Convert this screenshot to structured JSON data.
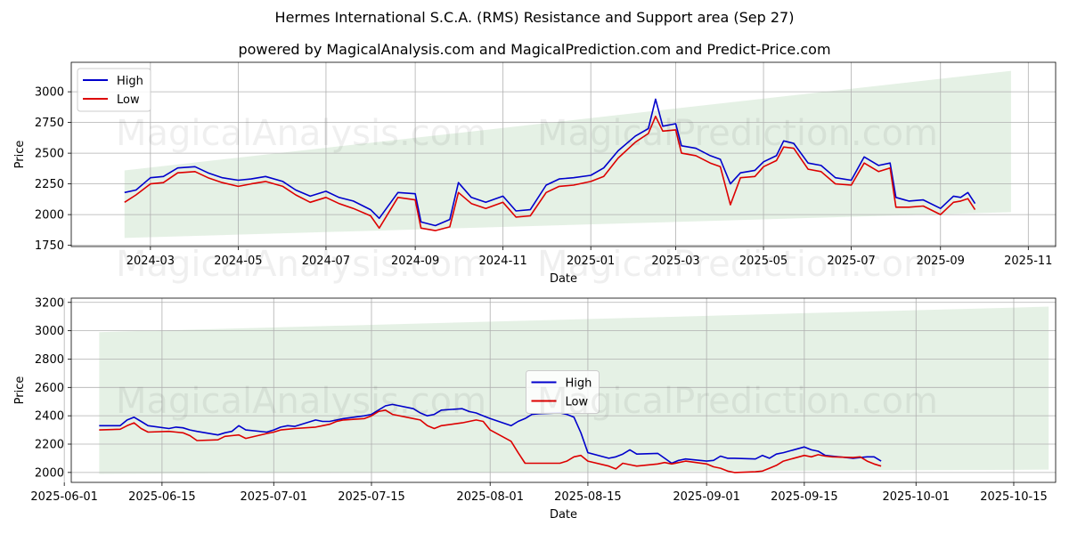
{
  "header": {
    "title": "Hermes International S.C.A. (RMS) Resistance and Support area (Sep 27)",
    "subtitle": "powered by MagicalAnalysis.com and MagicalPrediction.com and Predict-Price.com"
  },
  "watermarks": [
    "MagicalAnalysis.com",
    "MagicalPrediction.com"
  ],
  "colors": {
    "high": "#0000cc",
    "low": "#dd0000",
    "band": "#cfe6cf",
    "grid": "#b0b0b0"
  },
  "chart_data": [
    {
      "type": "line",
      "xlabel": "Date",
      "ylabel": "Price",
      "xlim": [
        "2024-01-06",
        "2025-11-20"
      ],
      "ylim": [
        1740,
        3240
      ],
      "x_ticks": [
        "2024-03",
        "2024-05",
        "2024-07",
        "2024-09",
        "2024-11",
        "2025-01",
        "2025-03",
        "2025-05",
        "2025-07",
        "2025-09",
        "2025-11"
      ],
      "x_tick_dates": [
        "2024-03-01",
        "2024-05-01",
        "2024-07-01",
        "2024-09-01",
        "2024-11-01",
        "2025-01-01",
        "2025-03-01",
        "2025-05-01",
        "2025-07-01",
        "2025-09-01",
        "2025-11-01"
      ],
      "y_ticks": [
        1750,
        2000,
        2250,
        2500,
        2750,
        3000
      ],
      "grid": true,
      "legend": "upper left",
      "band": {
        "start": "2024-02-12",
        "end": "2025-10-20",
        "upper": [
          2360,
          3170
        ],
        "lower": [
          1810,
          2020
        ]
      },
      "series": [
        {
          "name": "High",
          "x": [
            "2024-02-12",
            "2024-02-20",
            "2024-03-01",
            "2024-03-10",
            "2024-03-20",
            "2024-04-01",
            "2024-04-10",
            "2024-04-20",
            "2024-05-01",
            "2024-05-10",
            "2024-05-20",
            "2024-06-01",
            "2024-06-10",
            "2024-06-20",
            "2024-07-01",
            "2024-07-10",
            "2024-07-20",
            "2024-08-01",
            "2024-08-07",
            "2024-08-20",
            "2024-09-01",
            "2024-09-05",
            "2024-09-15",
            "2024-09-25",
            "2024-10-01",
            "2024-10-10",
            "2024-10-20",
            "2024-11-01",
            "2024-11-10",
            "2024-11-20",
            "2024-12-01",
            "2024-12-10",
            "2024-12-20",
            "2025-01-01",
            "2025-01-10",
            "2025-01-20",
            "2025-02-01",
            "2025-02-10",
            "2025-02-15",
            "2025-02-20",
            "2025-03-01",
            "2025-03-05",
            "2025-03-15",
            "2025-03-25",
            "2025-04-01",
            "2025-04-08",
            "2025-04-15",
            "2025-04-25",
            "2025-05-01",
            "2025-05-10",
            "2025-05-15",
            "2025-05-22",
            "2025-06-01",
            "2025-06-10",
            "2025-06-20",
            "2025-07-01",
            "2025-07-10",
            "2025-07-20",
            "2025-07-28",
            "2025-08-01",
            "2025-08-10",
            "2025-08-20",
            "2025-09-01",
            "2025-09-10",
            "2025-09-15",
            "2025-09-20",
            "2025-09-25"
          ],
          "values": [
            2180,
            2200,
            2300,
            2310,
            2380,
            2390,
            2340,
            2300,
            2280,
            2290,
            2310,
            2270,
            2200,
            2150,
            2190,
            2140,
            2110,
            2040,
            1970,
            2180,
            2170,
            1940,
            1910,
            1960,
            2260,
            2140,
            2100,
            2150,
            2030,
            2040,
            2240,
            2290,
            2300,
            2320,
            2380,
            2520,
            2640,
            2700,
            2940,
            2720,
            2740,
            2560,
            2540,
            2480,
            2450,
            2250,
            2340,
            2360,
            2430,
            2480,
            2600,
            2580,
            2420,
            2400,
            2300,
            2280,
            2470,
            2400,
            2420,
            2140,
            2110,
            2120,
            2050,
            2150,
            2140,
            2180,
            2090
          ]
        },
        {
          "name": "Low",
          "x": [
            "2024-02-12",
            "2024-02-20",
            "2024-03-01",
            "2024-03-10",
            "2024-03-20",
            "2024-04-01",
            "2024-04-10",
            "2024-04-20",
            "2024-05-01",
            "2024-05-10",
            "2024-05-20",
            "2024-06-01",
            "2024-06-10",
            "2024-06-20",
            "2024-07-01",
            "2024-07-10",
            "2024-07-20",
            "2024-08-01",
            "2024-08-07",
            "2024-08-20",
            "2024-09-01",
            "2024-09-05",
            "2024-09-15",
            "2024-09-25",
            "2024-10-01",
            "2024-10-10",
            "2024-10-20",
            "2024-11-01",
            "2024-11-10",
            "2024-11-20",
            "2024-12-01",
            "2024-12-10",
            "2024-12-20",
            "2025-01-01",
            "2025-01-10",
            "2025-01-20",
            "2025-02-01",
            "2025-02-10",
            "2025-02-15",
            "2025-02-20",
            "2025-03-01",
            "2025-03-05",
            "2025-03-15",
            "2025-03-25",
            "2025-04-01",
            "2025-04-08",
            "2025-04-15",
            "2025-04-25",
            "2025-05-01",
            "2025-05-10",
            "2025-05-15",
            "2025-05-22",
            "2025-06-01",
            "2025-06-10",
            "2025-06-20",
            "2025-07-01",
            "2025-07-10",
            "2025-07-20",
            "2025-07-28",
            "2025-08-01",
            "2025-08-10",
            "2025-08-20",
            "2025-09-01",
            "2025-09-10",
            "2025-09-15",
            "2025-09-20",
            "2025-09-25"
          ],
          "values": [
            2100,
            2160,
            2250,
            2260,
            2340,
            2350,
            2300,
            2260,
            2230,
            2250,
            2270,
            2230,
            2160,
            2100,
            2140,
            2090,
            2050,
            1990,
            1890,
            2140,
            2120,
            1890,
            1870,
            1900,
            2180,
            2090,
            2050,
            2100,
            1980,
            1990,
            2180,
            2230,
            2240,
            2270,
            2310,
            2460,
            2590,
            2660,
            2800,
            2680,
            2690,
            2500,
            2480,
            2420,
            2390,
            2080,
            2300,
            2310,
            2390,
            2440,
            2550,
            2540,
            2370,
            2350,
            2250,
            2240,
            2420,
            2350,
            2380,
            2060,
            2060,
            2070,
            2000,
            2100,
            2110,
            2130,
            2040
          ]
        }
      ]
    },
    {
      "type": "line",
      "xlabel": "Date",
      "ylabel": "Price",
      "xlim": [
        "2025-06-02",
        "2025-10-21"
      ],
      "ylim": [
        1930,
        3230
      ],
      "x_ticks": [
        "2025-06-01",
        "2025-06-15",
        "2025-07-01",
        "2025-07-15",
        "2025-08-01",
        "2025-08-15",
        "2025-09-01",
        "2025-09-15",
        "2025-10-01",
        "2025-10-15"
      ],
      "y_ticks": [
        2000,
        2200,
        2400,
        2600,
        2800,
        3000,
        3200
      ],
      "grid": true,
      "legend": "center",
      "band": {
        "start": "2025-06-06",
        "end": "2025-10-20",
        "upper": [
          2990,
          3170
        ],
        "lower": [
          1990,
          2020
        ]
      },
      "series": [
        {
          "name": "High",
          "x": [
            "2025-06-06",
            "2025-06-09",
            "2025-06-10",
            "2025-06-11",
            "2025-06-12",
            "2025-06-13",
            "2025-06-16",
            "2025-06-17",
            "2025-06-18",
            "2025-06-19",
            "2025-06-20",
            "2025-06-23",
            "2025-06-24",
            "2025-06-25",
            "2025-06-26",
            "2025-06-27",
            "2025-06-30",
            "2025-07-01",
            "2025-07-02",
            "2025-07-03",
            "2025-07-04",
            "2025-07-07",
            "2025-07-08",
            "2025-07-09",
            "2025-07-10",
            "2025-07-11",
            "2025-07-14",
            "2025-07-15",
            "2025-07-16",
            "2025-07-17",
            "2025-07-18",
            "2025-07-21",
            "2025-07-22",
            "2025-07-23",
            "2025-07-24",
            "2025-07-25",
            "2025-07-28",
            "2025-07-29",
            "2025-07-30",
            "2025-07-31",
            "2025-08-01",
            "2025-08-04",
            "2025-08-05",
            "2025-08-06",
            "2025-08-07",
            "2025-08-08",
            "2025-08-11",
            "2025-08-12",
            "2025-08-13",
            "2025-08-14",
            "2025-08-15",
            "2025-08-18",
            "2025-08-19",
            "2025-08-20",
            "2025-08-21",
            "2025-08-22",
            "2025-08-25",
            "2025-08-26",
            "2025-08-27",
            "2025-08-28",
            "2025-08-29",
            "2025-09-01",
            "2025-09-02",
            "2025-09-03",
            "2025-09-04",
            "2025-09-05",
            "2025-09-08",
            "2025-09-09",
            "2025-09-10",
            "2025-09-11",
            "2025-09-12",
            "2025-09-15",
            "2025-09-16",
            "2025-09-17",
            "2025-09-18",
            "2025-09-19",
            "2025-09-22",
            "2025-09-23",
            "2025-09-24",
            "2025-09-25",
            "2025-09-26"
          ],
          "values": [
            2330,
            2330,
            2370,
            2390,
            2360,
            2330,
            2310,
            2320,
            2315,
            2300,
            2290,
            2265,
            2280,
            2290,
            2330,
            2300,
            2285,
            2300,
            2320,
            2330,
            2325,
            2370,
            2360,
            2360,
            2370,
            2380,
            2400,
            2410,
            2440,
            2470,
            2480,
            2450,
            2420,
            2400,
            2410,
            2440,
            2450,
            2430,
            2420,
            2400,
            2380,
            2330,
            2360,
            2380,
            2410,
            2415,
            2420,
            2410,
            2390,
            2280,
            2140,
            2100,
            2110,
            2130,
            2160,
            2130,
            2135,
            2100,
            2065,
            2085,
            2095,
            2080,
            2085,
            2115,
            2100,
            2100,
            2095,
            2120,
            2100,
            2130,
            2140,
            2180,
            2160,
            2150,
            2120,
            2115,
            2100,
            2105,
            2110,
            2110,
            2080
          ]
        },
        {
          "name": "Low",
          "x": [
            "2025-06-06",
            "2025-06-09",
            "2025-06-10",
            "2025-06-11",
            "2025-06-12",
            "2025-06-13",
            "2025-06-16",
            "2025-06-17",
            "2025-06-18",
            "2025-06-19",
            "2025-06-20",
            "2025-06-23",
            "2025-06-24",
            "2025-06-25",
            "2025-06-26",
            "2025-06-27",
            "2025-06-30",
            "2025-07-01",
            "2025-07-02",
            "2025-07-03",
            "2025-07-04",
            "2025-07-07",
            "2025-07-08",
            "2025-07-09",
            "2025-07-10",
            "2025-07-11",
            "2025-07-14",
            "2025-07-15",
            "2025-07-16",
            "2025-07-17",
            "2025-07-18",
            "2025-07-21",
            "2025-07-22",
            "2025-07-23",
            "2025-07-24",
            "2025-07-25",
            "2025-07-28",
            "2025-07-29",
            "2025-07-30",
            "2025-07-31",
            "2025-08-01",
            "2025-08-04",
            "2025-08-05",
            "2025-08-06",
            "2025-08-07",
            "2025-08-08",
            "2025-08-11",
            "2025-08-12",
            "2025-08-13",
            "2025-08-14",
            "2025-08-15",
            "2025-08-18",
            "2025-08-19",
            "2025-08-20",
            "2025-08-21",
            "2025-08-22",
            "2025-08-25",
            "2025-08-26",
            "2025-08-27",
            "2025-08-28",
            "2025-08-29",
            "2025-09-01",
            "2025-09-02",
            "2025-09-03",
            "2025-09-04",
            "2025-09-05",
            "2025-09-08",
            "2025-09-09",
            "2025-09-10",
            "2025-09-11",
            "2025-09-12",
            "2025-09-15",
            "2025-09-16",
            "2025-09-17",
            "2025-09-18",
            "2025-09-19",
            "2025-09-22",
            "2025-09-23",
            "2025-09-24",
            "2025-09-25",
            "2025-09-26"
          ],
          "values": [
            2300,
            2305,
            2330,
            2350,
            2310,
            2285,
            2290,
            2285,
            2280,
            2260,
            2225,
            2230,
            2255,
            2260,
            2265,
            2240,
            2275,
            2285,
            2300,
            2305,
            2310,
            2320,
            2330,
            2340,
            2360,
            2370,
            2380,
            2400,
            2430,
            2440,
            2410,
            2380,
            2370,
            2330,
            2310,
            2330,
            2350,
            2360,
            2370,
            2360,
            2300,
            2220,
            2140,
            2065,
            2065,
            2065,
            2065,
            2080,
            2110,
            2120,
            2080,
            2045,
            2025,
            2065,
            2055,
            2045,
            2060,
            2070,
            2060,
            2070,
            2080,
            2060,
            2040,
            2030,
            2010,
            2000,
            2005,
            2010,
            2030,
            2050,
            2080,
            2120,
            2110,
            2125,
            2115,
            2110,
            2105,
            2110,
            2080,
            2060,
            2045
          ]
        }
      ]
    }
  ]
}
